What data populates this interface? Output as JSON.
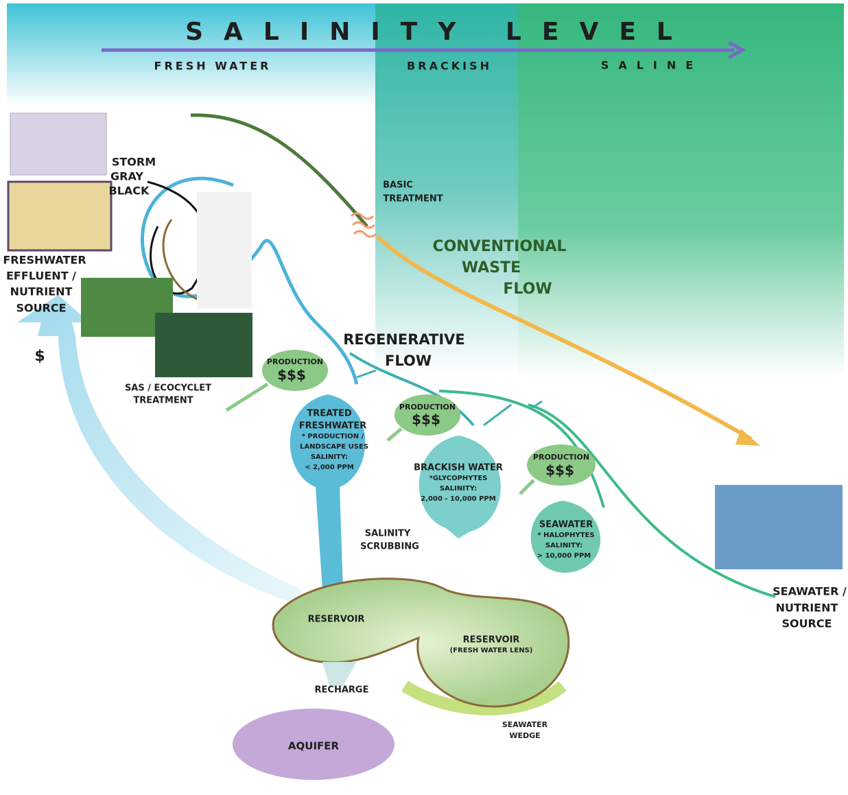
{
  "header": {
    "title": "SALINITY LEVEL",
    "zones": [
      "FRESH WATER",
      "BRACKISH",
      "SALINE"
    ]
  },
  "sources": {
    "freshwater": [
      "FRESHWATER",
      "EFFLUENT /",
      "NUTRIENT",
      "SOURCE"
    ],
    "seawater": [
      "SEAWATER /",
      "NUTRIENT",
      "SOURCE"
    ]
  },
  "waste_types": [
    "STORM",
    "GRAY",
    "BLACK"
  ],
  "cost_marker": "$",
  "sas_treatment": [
    "SAS / ECOCYCLET",
    "TREATMENT"
  ],
  "basic_treatment": [
    "BASIC",
    "TREATMENT"
  ],
  "flows": {
    "conventional": [
      "CONVENTIONAL",
      "WASTE",
      "FLOW"
    ],
    "regenerative": [
      "REGENERATIVE",
      "FLOW"
    ]
  },
  "production": [
    {
      "label": "PRODUCTION",
      "value": "$$$"
    },
    {
      "label": "PRODUCTION",
      "value": "$$$"
    },
    {
      "label": "PRODUCTION",
      "value": "$$$"
    }
  ],
  "nodes": [
    {
      "lines": [
        "TREATED",
        "FRESHWATER",
        "* PRODUCTION /",
        "LANDSCAPE USES",
        "SALINITY:",
        "< 2,000 PPM"
      ]
    },
    {
      "lines": [
        "BRACKISH WATER",
        "*GLYCOPHYTES",
        "SALINITY:",
        "2,000 - 10,000 PPM"
      ]
    },
    {
      "lines": [
        "SEAWATER",
        "* HALOPHYTES",
        "SALINITY:",
        "> 10,000 PPM"
      ]
    }
  ],
  "salinity_scrubbing": [
    "SALINITY",
    "SCRUBBING"
  ],
  "reservoirs": [
    {
      "lines": [
        "RESERVOIR"
      ]
    },
    {
      "lines": [
        "RESERVOIR",
        "(FRESH WATER LENS)"
      ]
    }
  ],
  "recharge": "RECHARGE",
  "aquifer": "AQUIFER",
  "seawater_wedge": [
    "SEAWATER",
    "WEDGE"
  ]
}
